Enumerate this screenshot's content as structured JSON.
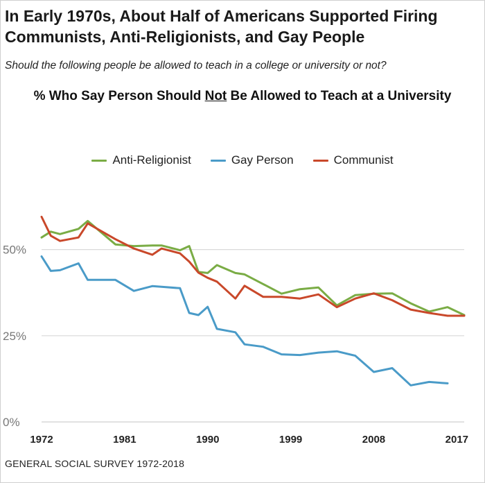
{
  "header": {
    "title_line1": "In Early 1970s, About Half of Americans Supported Firing",
    "title_line2": "Communists, Anti-Religionists, and Gay People",
    "subtitle": "Should the following people be allowed to teach in a college or university or not?",
    "chart_heading_prefix": "% Who Say Person Should ",
    "chart_heading_emph": "Not",
    "chart_heading_suffix": " Be Allowed to Teach at a University"
  },
  "footer": {
    "source": "GENERAL SOCIAL SURVEY 1972-2018"
  },
  "chart_data": {
    "type": "line",
    "title": "% Who Say Person Should Not Be Allowed to Teach at a University",
    "xlabel": "",
    "ylabel": "",
    "xlim": [
      1972,
      2017.8
    ],
    "ylim": [
      0,
      62
    ],
    "x_ticks": [
      1972,
      1981,
      1990,
      1999,
      2008,
      2017
    ],
    "y_ticks": [
      0,
      25,
      50
    ],
    "y_tick_labels": [
      "0%",
      "25%",
      "50%"
    ],
    "grid": "horizontal",
    "legend_position": "top",
    "series": [
      {
        "name": "Anti-Religionist",
        "color": "#7aac45",
        "x": [
          1972,
          1973,
          1974,
          1976,
          1977,
          1980,
          1982,
          1984,
          1985,
          1987,
          1988,
          1989,
          1990,
          1991,
          1993,
          1994,
          1996,
          1998,
          2000,
          2002,
          2004,
          2006,
          2008,
          2010,
          2012,
          2014,
          2016,
          2018
        ],
        "values": [
          53.5,
          55.2,
          54.5,
          56,
          58.3,
          51.5,
          51,
          51.2,
          51.2,
          49.8,
          51,
          43.5,
          43.2,
          45.5,
          43.2,
          42.8,
          40,
          37.2,
          38.5,
          39,
          33.8,
          36.8,
          37.2,
          37.3,
          34.4,
          32,
          33.3,
          31
        ]
      },
      {
        "name": "Gay Person",
        "color": "#4a9bc8",
        "x": [
          1972,
          1973,
          1974,
          1976,
          1977,
          1980,
          1982,
          1984,
          1985,
          1987,
          1988,
          1989,
          1990,
          1991,
          1993,
          1994,
          1996,
          1998,
          2000,
          2002,
          2004,
          2006,
          2008,
          2010,
          2012,
          2014,
          2016
        ],
        "values": [
          48,
          43.8,
          44,
          46,
          41.2,
          41.2,
          38,
          39.4,
          39.2,
          38.8,
          31.6,
          31,
          33.4,
          27,
          26,
          22.5,
          21.8,
          19.6,
          19.4,
          20.1,
          20.5,
          19.2,
          14.5,
          15.6,
          10.6,
          11.6,
          11.2
        ]
      },
      {
        "name": "Communist",
        "color": "#c9482a",
        "x": [
          1972,
          1973,
          1974,
          1976,
          1977,
          1980,
          1982,
          1984,
          1985,
          1987,
          1988,
          1989,
          1990,
          1991,
          1993,
          1994,
          1996,
          1998,
          2000,
          2002,
          2004,
          2006,
          2008,
          2010,
          2012,
          2014,
          2016,
          2018
        ],
        "values": [
          59.5,
          54,
          52.5,
          53.5,
          57.6,
          53,
          50.3,
          48.5,
          50.3,
          48.9,
          46.5,
          43.3,
          41.8,
          40.7,
          35.8,
          39.5,
          36.3,
          36.3,
          35.8,
          37,
          33.3,
          35.8,
          37.3,
          35.3,
          32.6,
          31.6,
          30.8,
          30.8
        ]
      }
    ]
  }
}
